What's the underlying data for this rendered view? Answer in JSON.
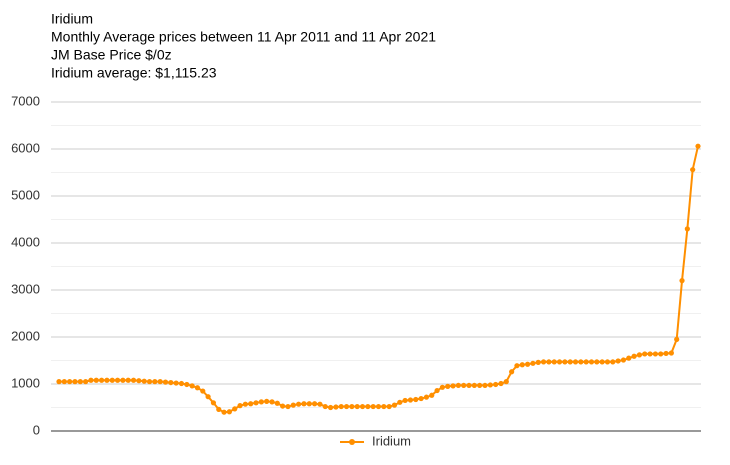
{
  "chart_data": {
    "type": "line",
    "title": "Iridium",
    "subtitle": "Monthly Average prices between 11 Apr 2011 and 11 Apr 2021",
    "annotations": [
      "JM Base Price $/0z",
      "Iridium average: $1,115.23"
    ],
    "series": [
      {
        "name": "Iridium",
        "color": "#ff8f00",
        "values": [
          1050,
          1050,
          1050,
          1050,
          1050,
          1050,
          1080,
          1080,
          1080,
          1080,
          1080,
          1080,
          1080,
          1080,
          1080,
          1070,
          1060,
          1050,
          1050,
          1050,
          1040,
          1030,
          1020,
          1010,
          990,
          960,
          920,
          850,
          730,
          600,
          460,
          400,
          410,
          470,
          540,
          570,
          580,
          600,
          620,
          630,
          620,
          590,
          530,
          520,
          550,
          570,
          580,
          580,
          580,
          570,
          520,
          500,
          510,
          520,
          520,
          520,
          520,
          520,
          520,
          520,
          520,
          520,
          520,
          550,
          610,
          650,
          660,
          670,
          690,
          720,
          760,
          860,
          930,
          950,
          960,
          970,
          970,
          970,
          970,
          970,
          970,
          980,
          990,
          1010,
          1050,
          1260,
          1390,
          1410,
          1420,
          1440,
          1460,
          1470,
          1470,
          1470,
          1470,
          1470,
          1470,
          1470,
          1470,
          1470,
          1470,
          1470,
          1470,
          1470,
          1470,
          1490,
          1510,
          1550,
          1590,
          1620,
          1640,
          1640,
          1640,
          1640,
          1650,
          1660,
          1950,
          3200,
          4300,
          5560,
          6060
        ]
      }
    ],
    "ylim": [
      0,
      7000
    ],
    "yticks": [
      0,
      1000,
      2000,
      3000,
      4000,
      5000,
      6000,
      7000
    ],
    "minor_yticks": [
      500,
      1500,
      2500,
      3500,
      4500,
      5500,
      6500
    ],
    "grid": true,
    "legend": "bottom"
  }
}
